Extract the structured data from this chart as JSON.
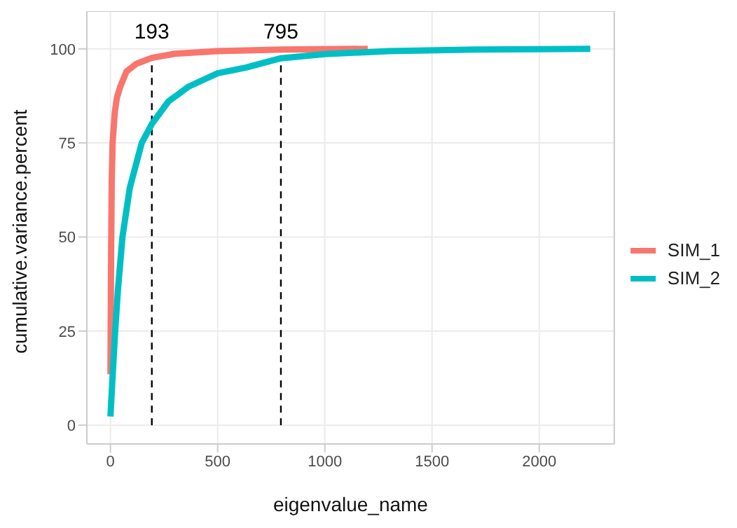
{
  "chart_data": {
    "type": "line",
    "xlabel": "eigenvalue_name",
    "ylabel": "cumulative.variance.percent",
    "xlim": [
      -110,
      2350
    ],
    "xticks": [
      0,
      500,
      1000,
      1500,
      2000
    ],
    "ylim": [
      -5,
      110
    ],
    "yticks": [
      0,
      25,
      50,
      75,
      100
    ],
    "grid": true,
    "legend": "right",
    "line_style": "solid",
    "marker": "none",
    "series": [
      {
        "name": "SIM_1",
        "color": "#f8766d",
        "x": [
          0,
          3,
          6,
          10,
          20,
          30,
          46,
          75,
          120,
          193,
          300,
          500,
          800,
          1200
        ],
        "values": [
          13.5,
          45,
          65,
          75,
          83,
          87,
          90,
          94,
          96,
          97.6,
          98.7,
          99.4,
          99.8,
          100
        ]
      },
      {
        "name": "SIM_2",
        "color": "#00bfc4",
        "x": [
          0,
          10,
          22,
          35,
          56,
          90,
          146,
          193,
          270,
          366,
          500,
          630,
          795,
          1000,
          1300,
          1700,
          2238
        ],
        "values": [
          2.3,
          13,
          25,
          36,
          50,
          63,
          75,
          80,
          86,
          90,
          93.5,
          95,
          97.5,
          98.6,
          99.4,
          99.8,
          100
        ]
      }
    ],
    "ref_lines": [
      {
        "axis": "x",
        "value": 193,
        "label": "193",
        "line_style": "dashed",
        "color": "#000000"
      },
      {
        "axis": "x",
        "value": 795,
        "label": "795",
        "line_style": "dashed",
        "color": "#000000"
      }
    ]
  }
}
